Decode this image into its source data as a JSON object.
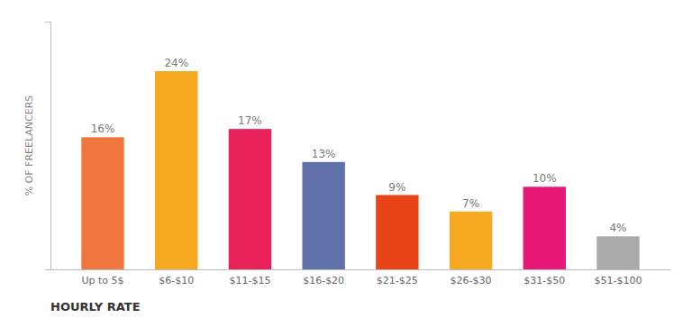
{
  "chart_data": {
    "type": "bar",
    "categories": [
      "Up to 5$",
      "$6-$10",
      "$11-$15",
      "$16-$20",
      "$21-$25",
      "$26-$30",
      "$31-$50",
      "$51-$100"
    ],
    "values": [
      16,
      24,
      17,
      13,
      9,
      7,
      10,
      4
    ],
    "value_labels": [
      "16%",
      "24%",
      "17%",
      "13%",
      "9%",
      "7%",
      "10%",
      "4%"
    ],
    "data_labels": true,
    "colors": [
      "#F07840",
      "#F5A820",
      "#E8215A",
      "#6070A8",
      "#E84418",
      "#F5A820",
      "#E81878",
      "#AAAAAA"
    ],
    "xlabel": "HOURLY RATE",
    "ylabel": "% OF FREELANCERS",
    "ylim": [
      0,
      30
    ],
    "tick_labels": "x",
    "grid": false
  }
}
